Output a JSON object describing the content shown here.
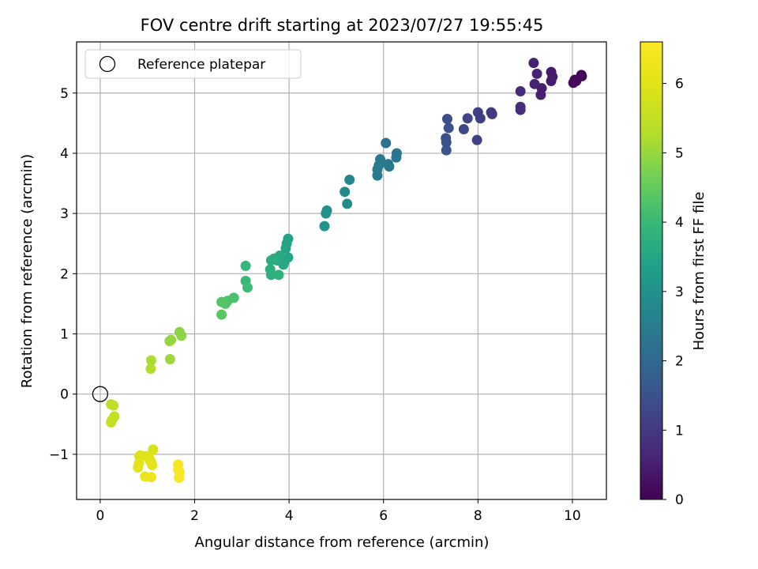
{
  "chart_data": {
    "type": "scatter",
    "title": "FOV centre drift starting at 2023/07/27 19:55:45",
    "xlabel": "Angular distance from reference (arcmin)",
    "ylabel": "Rotation from reference (arcmin)",
    "xlim": [
      -0.5,
      10.72
    ],
    "ylim": [
      -1.75,
      5.85
    ],
    "xticks": [
      0,
      2,
      4,
      6,
      8,
      10
    ],
    "yticks": [
      -1,
      0,
      1,
      2,
      3,
      4,
      5
    ],
    "grid": true,
    "legend": {
      "placement": "top-left",
      "entries": [
        "Reference platepar"
      ]
    },
    "reference_point": {
      "x": 0,
      "y": 0
    },
    "colorbar": {
      "label": "Hours from first FF file",
      "colormap": "viridis",
      "range": [
        0,
        6.6
      ],
      "ticks": [
        0,
        1,
        2,
        3,
        4,
        5,
        6
      ]
    },
    "points": [
      {
        "x": 10.19,
        "y": 5.3,
        "c": 0.02
      },
      {
        "x": 10.2,
        "y": 5.28,
        "c": 0.05
      },
      {
        "x": 10.05,
        "y": 5.22,
        "c": 0.1
      },
      {
        "x": 10.02,
        "y": 5.17,
        "c": 0.12
      },
      {
        "x": 10.08,
        "y": 5.2,
        "c": 0.15
      },
      {
        "x": 9.55,
        "y": 5.35,
        "c": 0.4
      },
      {
        "x": 9.58,
        "y": 5.27,
        "c": 0.42
      },
      {
        "x": 9.55,
        "y": 5.2,
        "c": 0.45
      },
      {
        "x": 9.35,
        "y": 5.08,
        "c": 0.5
      },
      {
        "x": 9.33,
        "y": 4.97,
        "c": 0.52
      },
      {
        "x": 9.18,
        "y": 5.5,
        "c": 0.55
      },
      {
        "x": 9.25,
        "y": 5.32,
        "c": 0.57
      },
      {
        "x": 9.2,
        "y": 5.15,
        "c": 0.6
      },
      {
        "x": 8.9,
        "y": 5.03,
        "c": 0.7
      },
      {
        "x": 8.9,
        "y": 4.77,
        "c": 0.75
      },
      {
        "x": 8.9,
        "y": 4.72,
        "c": 0.78
      },
      {
        "x": 8.28,
        "y": 4.68,
        "c": 1.0
      },
      {
        "x": 8.3,
        "y": 4.65,
        "c": 1.02
      },
      {
        "x": 8.0,
        "y": 4.68,
        "c": 1.1
      },
      {
        "x": 8.05,
        "y": 4.58,
        "c": 1.12
      },
      {
        "x": 7.98,
        "y": 4.22,
        "c": 1.18
      },
      {
        "x": 7.78,
        "y": 4.58,
        "c": 1.25
      },
      {
        "x": 7.7,
        "y": 4.4,
        "c": 1.3
      },
      {
        "x": 7.35,
        "y": 4.57,
        "c": 1.45
      },
      {
        "x": 7.38,
        "y": 4.42,
        "c": 1.48
      },
      {
        "x": 7.32,
        "y": 4.25,
        "c": 1.52
      },
      {
        "x": 7.33,
        "y": 4.18,
        "c": 1.55
      },
      {
        "x": 7.33,
        "y": 4.05,
        "c": 1.58
      },
      {
        "x": 6.05,
        "y": 4.17,
        "c": 2.2
      },
      {
        "x": 6.28,
        "y": 4.0,
        "c": 2.3
      },
      {
        "x": 6.27,
        "y": 3.93,
        "c": 2.32
      },
      {
        "x": 6.12,
        "y": 3.78,
        "c": 2.35
      },
      {
        "x": 6.1,
        "y": 3.82,
        "c": 2.38
      },
      {
        "x": 5.93,
        "y": 3.9,
        "c": 2.42
      },
      {
        "x": 5.9,
        "y": 3.8,
        "c": 2.45
      },
      {
        "x": 5.87,
        "y": 3.73,
        "c": 2.48
      },
      {
        "x": 5.87,
        "y": 3.63,
        "c": 2.5
      },
      {
        "x": 5.28,
        "y": 3.56,
        "c": 2.75
      },
      {
        "x": 5.18,
        "y": 3.36,
        "c": 2.8
      },
      {
        "x": 5.23,
        "y": 3.16,
        "c": 2.85
      },
      {
        "x": 4.8,
        "y": 3.05,
        "c": 3.0
      },
      {
        "x": 4.78,
        "y": 3.0,
        "c": 3.02
      },
      {
        "x": 4.75,
        "y": 2.79,
        "c": 3.08
      },
      {
        "x": 3.98,
        "y": 2.58,
        "c": 3.4
      },
      {
        "x": 3.95,
        "y": 2.5,
        "c": 3.42
      },
      {
        "x": 3.93,
        "y": 2.42,
        "c": 3.45
      },
      {
        "x": 3.98,
        "y": 2.27,
        "c": 3.5
      },
      {
        "x": 3.9,
        "y": 2.2,
        "c": 3.52
      },
      {
        "x": 3.88,
        "y": 2.15,
        "c": 3.55
      },
      {
        "x": 3.8,
        "y": 2.3,
        "c": 3.58
      },
      {
        "x": 3.75,
        "y": 2.22,
        "c": 3.62
      },
      {
        "x": 3.68,
        "y": 2.25,
        "c": 3.65
      },
      {
        "x": 3.62,
        "y": 2.22,
        "c": 3.7
      },
      {
        "x": 3.6,
        "y": 2.07,
        "c": 3.72
      },
      {
        "x": 3.62,
        "y": 1.98,
        "c": 3.75
      },
      {
        "x": 3.78,
        "y": 1.98,
        "c": 3.78
      },
      {
        "x": 3.08,
        "y": 2.13,
        "c": 3.95
      },
      {
        "x": 3.08,
        "y": 1.88,
        "c": 4.0
      },
      {
        "x": 3.12,
        "y": 1.77,
        "c": 4.05
      },
      {
        "x": 2.83,
        "y": 1.6,
        "c": 4.2
      },
      {
        "x": 2.7,
        "y": 1.55,
        "c": 4.25
      },
      {
        "x": 2.65,
        "y": 1.5,
        "c": 4.3
      },
      {
        "x": 2.57,
        "y": 1.53,
        "c": 4.33
      },
      {
        "x": 2.57,
        "y": 1.32,
        "c": 4.38
      },
      {
        "x": 1.68,
        "y": 1.03,
        "c": 4.85
      },
      {
        "x": 1.72,
        "y": 0.97,
        "c": 4.9
      },
      {
        "x": 1.5,
        "y": 0.9,
        "c": 4.98
      },
      {
        "x": 1.47,
        "y": 0.88,
        "c": 5.0
      },
      {
        "x": 1.48,
        "y": 0.58,
        "c": 5.05
      },
      {
        "x": 1.08,
        "y": 0.56,
        "c": 5.2
      },
      {
        "x": 1.07,
        "y": 0.42,
        "c": 5.25
      },
      {
        "x": 0.23,
        "y": -0.17,
        "c": 5.45
      },
      {
        "x": 0.28,
        "y": -0.19,
        "c": 5.47
      },
      {
        "x": 0.3,
        "y": -0.37,
        "c": 5.5
      },
      {
        "x": 0.25,
        "y": -0.43,
        "c": 5.53
      },
      {
        "x": 0.23,
        "y": -0.47,
        "c": 5.55
      },
      {
        "x": 1.12,
        "y": -0.92,
        "c": 5.85
      },
      {
        "x": 0.85,
        "y": -1.02,
        "c": 5.9
      },
      {
        "x": 0.83,
        "y": -1.03,
        "c": 5.92
      },
      {
        "x": 0.97,
        "y": -1.03,
        "c": 5.95
      },
      {
        "x": 1.03,
        "y": -1.05,
        "c": 5.97
      },
      {
        "x": 1.05,
        "y": -1.1,
        "c": 6.0
      },
      {
        "x": 1.08,
        "y": -1.13,
        "c": 6.02
      },
      {
        "x": 0.82,
        "y": -1.15,
        "c": 6.05
      },
      {
        "x": 0.8,
        "y": -1.22,
        "c": 6.08
      },
      {
        "x": 1.1,
        "y": -1.18,
        "c": 6.1
      },
      {
        "x": 0.95,
        "y": -1.37,
        "c": 6.2
      },
      {
        "x": 1.08,
        "y": -1.38,
        "c": 6.25
      },
      {
        "x": 1.65,
        "y": -1.17,
        "c": 6.4
      },
      {
        "x": 1.65,
        "y": -1.25,
        "c": 6.45
      },
      {
        "x": 1.68,
        "y": -1.3,
        "c": 6.5
      },
      {
        "x": 1.67,
        "y": -1.39,
        "c": 6.55
      }
    ]
  }
}
